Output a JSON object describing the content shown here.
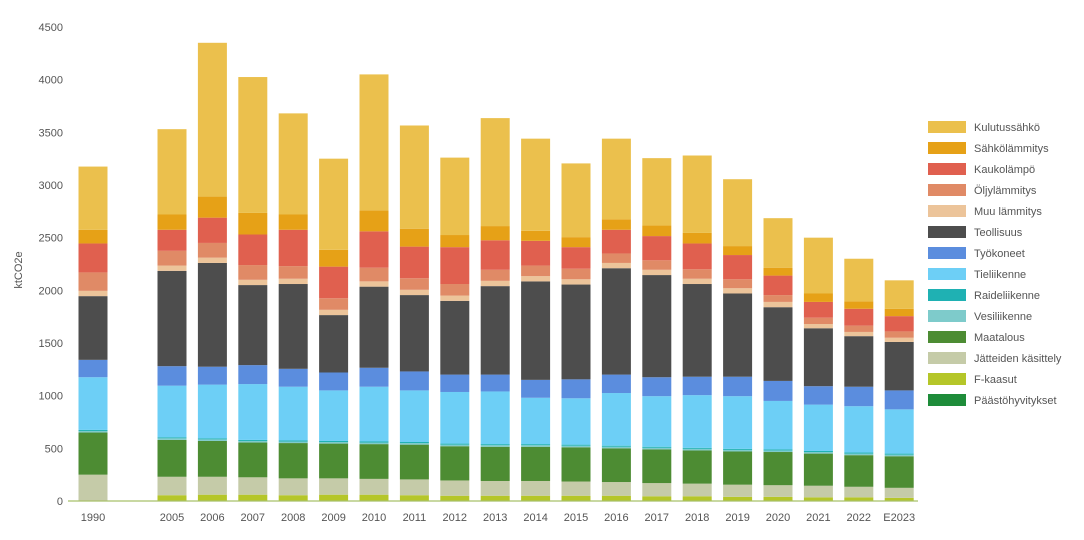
{
  "chart_data": {
    "type": "bar",
    "stacked": true,
    "title": "",
    "xlabel": "",
    "ylabel": "ktCO2e",
    "ylim": [
      0,
      4500
    ],
    "yticks": [
      0,
      500,
      1000,
      1500,
      2000,
      2500,
      3000,
      3500,
      4000,
      4500
    ],
    "grid": false,
    "legend_position": "right",
    "categories": [
      "1990",
      "2005",
      "2006",
      "2007",
      "2008",
      "2009",
      "2010",
      "2011",
      "2012",
      "2013",
      "2014",
      "2015",
      "2016",
      "2017",
      "2018",
      "2019",
      "2020",
      "2021",
      "2022",
      "E2023"
    ],
    "gap_after_index": 0,
    "series": [
      {
        "name": "Päästöhyvitykset",
        "color": "#1e8c3a",
        "values": [
          0,
          0,
          0,
          0,
          0,
          0,
          0,
          0,
          0,
          0,
          0,
          0,
          0,
          0,
          0,
          0,
          0,
          0,
          0,
          0
        ]
      },
      {
        "name": "F-kaasut",
        "color": "#b5c629",
        "values": [
          5,
          55,
          60,
          60,
          55,
          60,
          60,
          55,
          50,
          50,
          50,
          50,
          50,
          45,
          45,
          40,
          40,
          35,
          35,
          30
        ]
      },
      {
        "name": "Jätteiden käsittely",
        "color": "#c5cba8",
        "values": [
          245,
          175,
          170,
          165,
          160,
          155,
          150,
          150,
          145,
          140,
          140,
          135,
          130,
          125,
          120,
          115,
          110,
          110,
          100,
          95
        ]
      },
      {
        "name": "Maatalous",
        "color": "#4d8c33",
        "values": [
          400,
          350,
          340,
          330,
          335,
          330,
          330,
          330,
          325,
          325,
          325,
          325,
          320,
          320,
          315,
          315,
          315,
          305,
          300,
          300
        ]
      },
      {
        "name": "Vesiliikenne",
        "color": "#7ecbcb",
        "values": [
          15,
          15,
          15,
          15,
          15,
          15,
          15,
          15,
          15,
          15,
          15,
          15,
          15,
          15,
          15,
          15,
          15,
          15,
          15,
          15
        ]
      },
      {
        "name": "Raideliikenne",
        "color": "#1fb1b3",
        "values": [
          10,
          10,
          10,
          10,
          10,
          10,
          10,
          10,
          10,
          10,
          10,
          10,
          10,
          10,
          10,
          10,
          10,
          10,
          10,
          10
        ]
      },
      {
        "name": "Tieliikenne",
        "color": "#6dcff6",
        "values": [
          500,
          490,
          510,
          530,
          510,
          480,
          520,
          490,
          490,
          500,
          440,
          440,
          500,
          480,
          500,
          500,
          460,
          440,
          440,
          420
        ]
      },
      {
        "name": "Työkoneet",
        "color": "#5b8dde",
        "values": [
          165,
          185,
          170,
          180,
          170,
          170,
          180,
          180,
          165,
          160,
          170,
          180,
          175,
          180,
          175,
          185,
          190,
          175,
          185,
          180
        ]
      },
      {
        "name": "Teollisuus",
        "color": "#4d4d4d",
        "values": [
          605,
          905,
          985,
          760,
          805,
          545,
          770,
          725,
          700,
          840,
          935,
          900,
          1010,
          970,
          880,
          790,
          700,
          550,
          480,
          460
        ]
      },
      {
        "name": "Muu lämmitys",
        "color": "#ecc49a",
        "values": [
          50,
          50,
          50,
          50,
          50,
          50,
          50,
          50,
          50,
          50,
          50,
          50,
          50,
          50,
          50,
          50,
          50,
          40,
          40,
          40
        ]
      },
      {
        "name": "Öljylämmitys",
        "color": "#e08a66",
        "values": [
          175,
          140,
          140,
          140,
          120,
          110,
          130,
          110,
          110,
          105,
          100,
          100,
          90,
          90,
          90,
          85,
          65,
          60,
          60,
          60
        ]
      },
      {
        "name": "Kaukolämpö",
        "color": "#e0604f",
        "values": [
          275,
          200,
          240,
          290,
          345,
          300,
          345,
          300,
          350,
          280,
          235,
          205,
          225,
          230,
          245,
          230,
          185,
          150,
          160,
          145
        ]
      },
      {
        "name": "Sähkölämmitys",
        "color": "#e6a117",
        "values": [
          130,
          145,
          200,
          205,
          145,
          160,
          200,
          170,
          115,
          135,
          95,
          95,
          100,
          100,
          100,
          85,
          75,
          80,
          70,
          70
        ]
      },
      {
        "name": "Kulutussähkö",
        "color": "#ebc04d",
        "values": [
          600,
          810,
          1460,
          1290,
          960,
          865,
          1290,
          980,
          735,
          1025,
          875,
          700,
          765,
          640,
          735,
          635,
          470,
          530,
          405,
          270
        ]
      }
    ]
  }
}
